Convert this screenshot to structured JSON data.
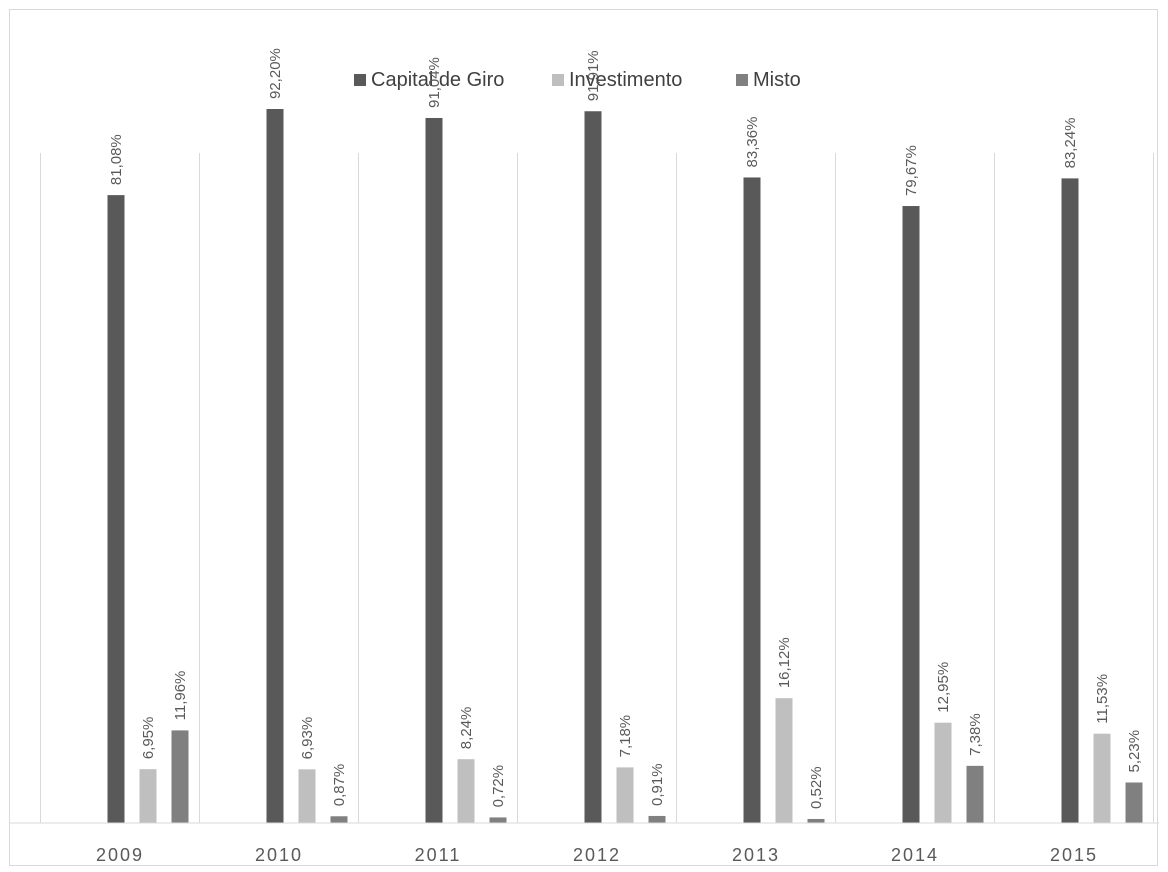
{
  "chart_data": {
    "type": "bar",
    "categories": [
      "2009",
      "2010",
      "2011",
      "2012",
      "2013",
      "2014",
      "2015"
    ],
    "series": [
      {
        "name": "Capital de Giro",
        "color": "#595959",
        "values": [
          81.08,
          92.2,
          91.04,
          91.91,
          83.36,
          79.67,
          83.24
        ],
        "labels": [
          "81,08%",
          "92,20%",
          "91,04%",
          "91,91%",
          "83,36%",
          "79,67%",
          "83,24%"
        ]
      },
      {
        "name": "Investimento",
        "color": "#bfbfbf",
        "values": [
          6.95,
          6.93,
          8.24,
          7.18,
          16.12,
          12.95,
          11.53
        ],
        "labels": [
          "6,95%",
          "6,93%",
          "8,24%",
          "7,18%",
          "16,12%",
          "12,95%",
          "11,53%"
        ]
      },
      {
        "name": "Misto",
        "color": "#808080",
        "values": [
          11.96,
          0.87,
          0.72,
          0.91,
          0.52,
          7.38,
          5.23
        ],
        "labels": [
          "11,96%",
          "0,87%",
          "0,72%",
          "0,91%",
          "0,52%",
          "7,38%",
          "5,23%"
        ]
      }
    ],
    "title": "",
    "xlabel": "",
    "ylabel": "",
    "ylim": [
      0,
      100
    ],
    "legend_position": "top-center",
    "grid": "vertical separators between categories",
    "data_labels": "rotated, above bars"
  }
}
